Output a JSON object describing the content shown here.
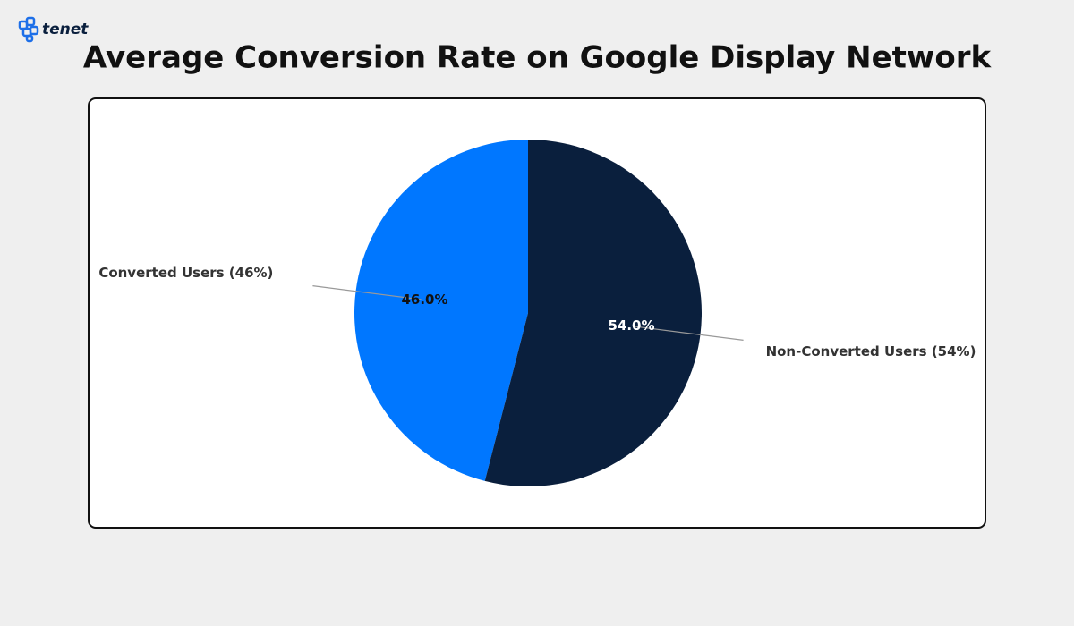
{
  "brand": "tenet",
  "chart_data": {
    "type": "pie",
    "title": "Average Conversion Rate on Google Display Network",
    "categories": [
      "Converted Users (46%)",
      "Non-Converted Users (54%)"
    ],
    "values": [
      46,
      54
    ],
    "value_labels": [
      "46.0%",
      "54.0%"
    ],
    "colors": [
      "#0077ff",
      "#0a1f3d"
    ]
  }
}
